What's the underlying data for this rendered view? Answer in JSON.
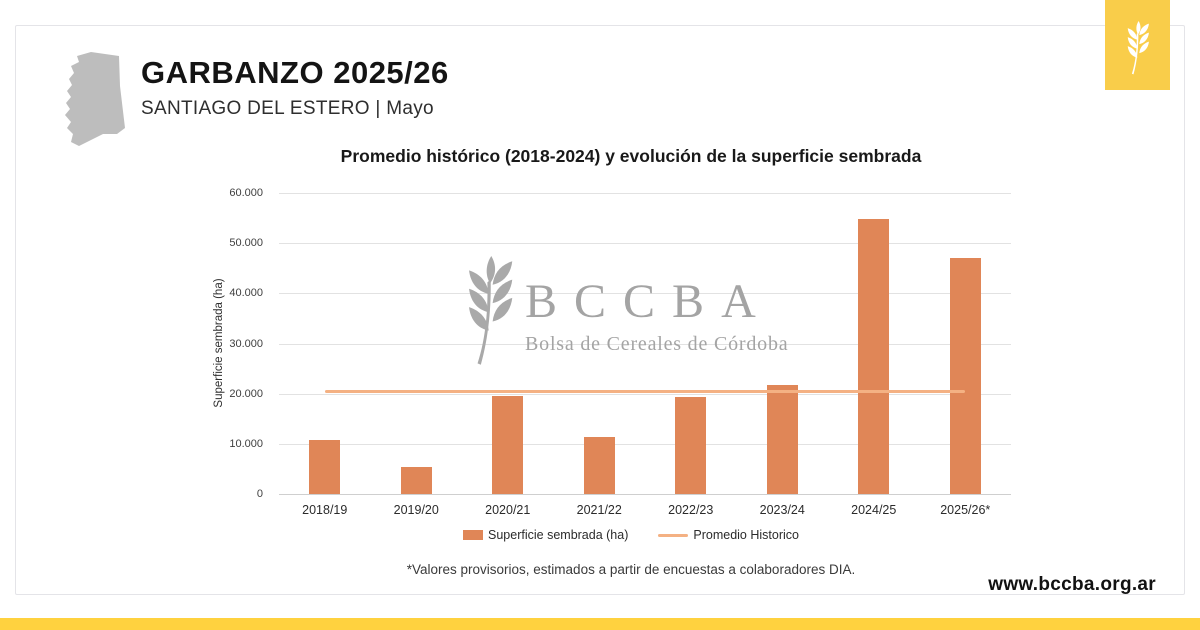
{
  "header": {
    "title": "GARBANZO 2025/26",
    "subtitle": "SANTIAGO DEL ESTERO | Mayo",
    "map_icon": "santiago-del-estero-province-silhouette",
    "brand_icon": "wheat-spike"
  },
  "chart_data": {
    "type": "bar",
    "title": "Promedio histórico (2018-2024) y evolución de la superficie sembrada",
    "xlabel": "",
    "ylabel": "Superficie sembrada (ha)",
    "categories": [
      "2018/19",
      "2019/20",
      "2020/21",
      "2021/22",
      "2022/23",
      "2023/24",
      "2024/25",
      "2025/26*"
    ],
    "series": [
      {
        "name": "Superficie sembrada (ha)",
        "type": "bar",
        "color": "#e08657",
        "values": [
          10700,
          5400,
          19600,
          11300,
          19300,
          21700,
          54800,
          47000
        ]
      },
      {
        "name": "Promedio Historico",
        "type": "line",
        "color": "#f4b183",
        "value": 20400
      }
    ],
    "ylim": [
      0,
      60000
    ],
    "ytick_step": 10000,
    "ytick_labels": [
      "0",
      "10.000",
      "20.000",
      "30.000",
      "40.000",
      "50.000",
      "60.000"
    ],
    "grid": "horizontal",
    "legend_position": "bottom"
  },
  "watermark": {
    "acronym": "BCCBA",
    "name": "Bolsa de Cereales de Córdoba",
    "icon": "wheat-branch",
    "color": "#a4a4a4"
  },
  "footnote": {
    "text": "*Valores provisorios, estimados a partir de encuestas a colaboradores DIA."
  },
  "footer": {
    "url": "www.bccba.org.ar"
  },
  "colors": {
    "accent_yellow_square": "#f9cd4a",
    "accent_yellow_bar": "#ffd23f",
    "bar_orange": "#e08657",
    "line_salmon": "#f4b183",
    "map_gray": "#bdbdbd",
    "watermark_gray": "#a4a4a4"
  }
}
